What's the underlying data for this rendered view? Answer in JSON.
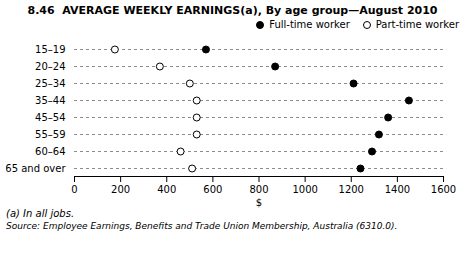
{
  "chart_data": {
    "type": "dot",
    "title": "8.46  AVERAGE WEEKLY EARNINGS(a), By age group—August 2010",
    "orientation": "horizontal",
    "categories": [
      "15–19",
      "20–24",
      "25–34",
      "35–44",
      "45–54",
      "55–59",
      "60–64",
      "65 and over"
    ],
    "series": [
      {
        "name": "Full-time worker",
        "color": "black",
        "marker": "circle",
        "values": [
          570,
          870,
          1210,
          1450,
          1360,
          1320,
          1290,
          1240
        ]
      },
      {
        "name": "Part-time worker",
        "color": "white",
        "marker": "circle",
        "values": [
          175,
          370,
          500,
          530,
          530,
          530,
          460,
          510
        ]
      }
    ],
    "xlabel": "$",
    "xlim": [
      0,
      1600
    ],
    "xticks": [
      0,
      200,
      400,
      600,
      800,
      1000,
      1200,
      1400,
      1600
    ],
    "grid": "y",
    "legend": "upper right",
    "annotations": [
      "(a) In all jobs.",
      "Source: Employee Earnings, Benefits and Trade Union Membership, Australia (6310.0)."
    ]
  }
}
